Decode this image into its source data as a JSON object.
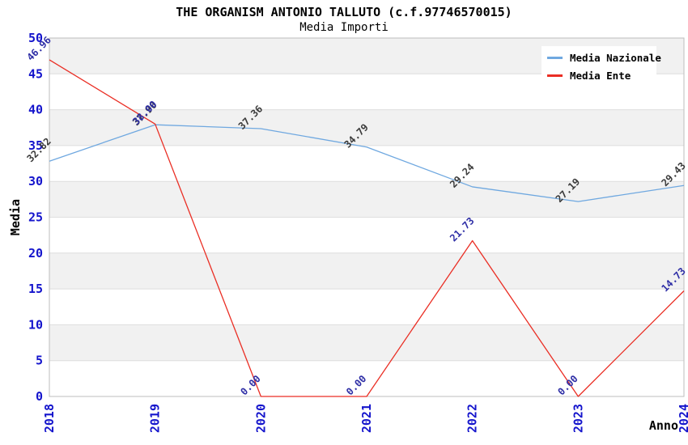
{
  "header": {
    "title": "THE ORGANISM ANTONIO TALLUTO (c.f.97746570015)",
    "subtitle": "Media Importi"
  },
  "legend": {
    "items": [
      {
        "label": "Media Nazionale",
        "color": "#6fa8e0"
      },
      {
        "label": "Media Ente",
        "color": "#ea2e24"
      }
    ]
  },
  "chart_data": {
    "type": "line",
    "x": [
      2018,
      2019,
      2020,
      2021,
      2022,
      2023,
      2024
    ],
    "xlabel": "Anno",
    "ylabel": "Media",
    "ylim": [
      0,
      50
    ],
    "yticks": [
      0,
      5,
      10,
      15,
      20,
      25,
      30,
      35,
      40,
      45,
      50
    ],
    "grid": true,
    "legend_position": "top-right",
    "series": [
      {
        "name": "Media Nazionale",
        "color": "#6fa8e0",
        "label_color": "#3a3a3a",
        "values": [
          32.82,
          37.9,
          37.36,
          34.79,
          29.24,
          27.19,
          29.43
        ],
        "labels": [
          "32.82",
          "37.90",
          "37.36",
          "34.79",
          "29.24",
          "27.19",
          "29.43"
        ]
      },
      {
        "name": "Media Ente",
        "color": "#ea2e24",
        "label_color": "#2e2ea6",
        "values": [
          46.96,
          38.0,
          0.0,
          0.0,
          21.73,
          0.0,
          14.73
        ],
        "labels": [
          "46.96",
          "38.00",
          "0.00",
          "0.00",
          "21.73",
          "0.00",
          "14.73"
        ]
      }
    ],
    "colors": {
      "tick_label": "#1414cc",
      "band": "#f1f1f1",
      "gridline": "#dedede",
      "frame": "#bdbdbd",
      "axis_title": "#000000"
    }
  }
}
